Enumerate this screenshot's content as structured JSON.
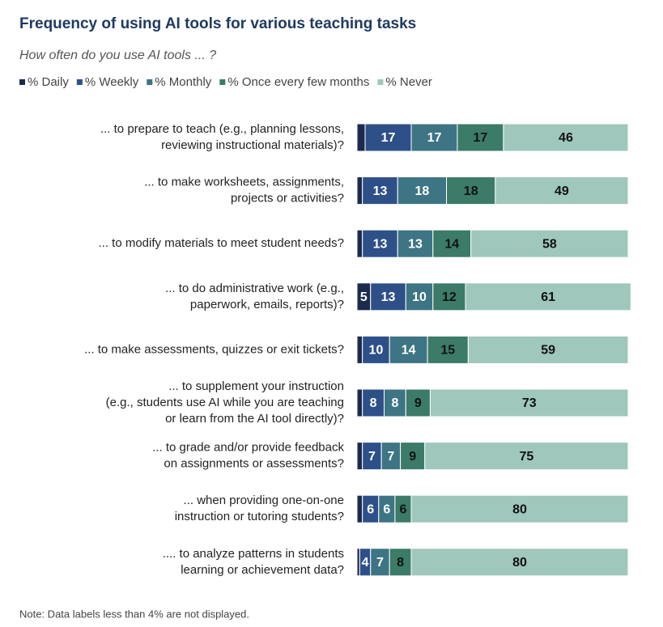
{
  "chart_data": {
    "type": "stacked_barh",
    "title": "Frequency of using AI tools for various teaching tasks",
    "subtitle": "How often do you use AI tools ... ?",
    "note": "Note: Data labels less than 4% are not displayed.",
    "xlim": [
      0,
      100
    ],
    "categories": [
      [
        "... to prepare to teach (e.g., planning lessons,",
        "reviewing instructional materials)?"
      ],
      [
        "... to make worksheets, assignments,",
        "projects or activities?"
      ],
      [
        "... to modify materials to meet student needs?"
      ],
      [
        "... to do administrative work (e.g.,",
        "paperwork, emails, reports)?"
      ],
      [
        "... to make assessments, quizzes or exit tickets?"
      ],
      [
        "... to supplement your instruction",
        "(e.g., students use AI while you are teaching",
        "or learn from the AI tool directly)?"
      ],
      [
        "... to grade and/or provide feedback",
        "on assignments or assessments?"
      ],
      [
        "... when providing one-on-one",
        "instruction or tutoring students?"
      ],
      [
        ".... to analyze patterns in students",
        "learning or achievement data?"
      ]
    ],
    "series": [
      {
        "name": "% Daily",
        "color": "#1c2b4d",
        "text_color": "#ffffff",
        "values": [
          3,
          2,
          2,
          5,
          2,
          2,
          2,
          2,
          1
        ]
      },
      {
        "name": "% Weekly",
        "color": "#2e5088",
        "text_color": "#ffffff",
        "values": [
          17,
          13,
          13,
          13,
          10,
          8,
          7,
          6,
          4
        ]
      },
      {
        "name": "% Monthly",
        "color": "#3d7584",
        "text_color": "#ffffff",
        "values": [
          17,
          18,
          13,
          10,
          14,
          8,
          7,
          6,
          7
        ]
      },
      {
        "name": "% Once every few months",
        "color": "#3b7b68",
        "text_color": "#111111",
        "values": [
          17,
          18,
          14,
          12,
          15,
          9,
          9,
          6,
          8
        ]
      },
      {
        "name": "% Never",
        "color": "#9fc7bc",
        "text_color": "#111111",
        "values": [
          46,
          49,
          58,
          61,
          59,
          73,
          75,
          80,
          80
        ]
      }
    ]
  }
}
